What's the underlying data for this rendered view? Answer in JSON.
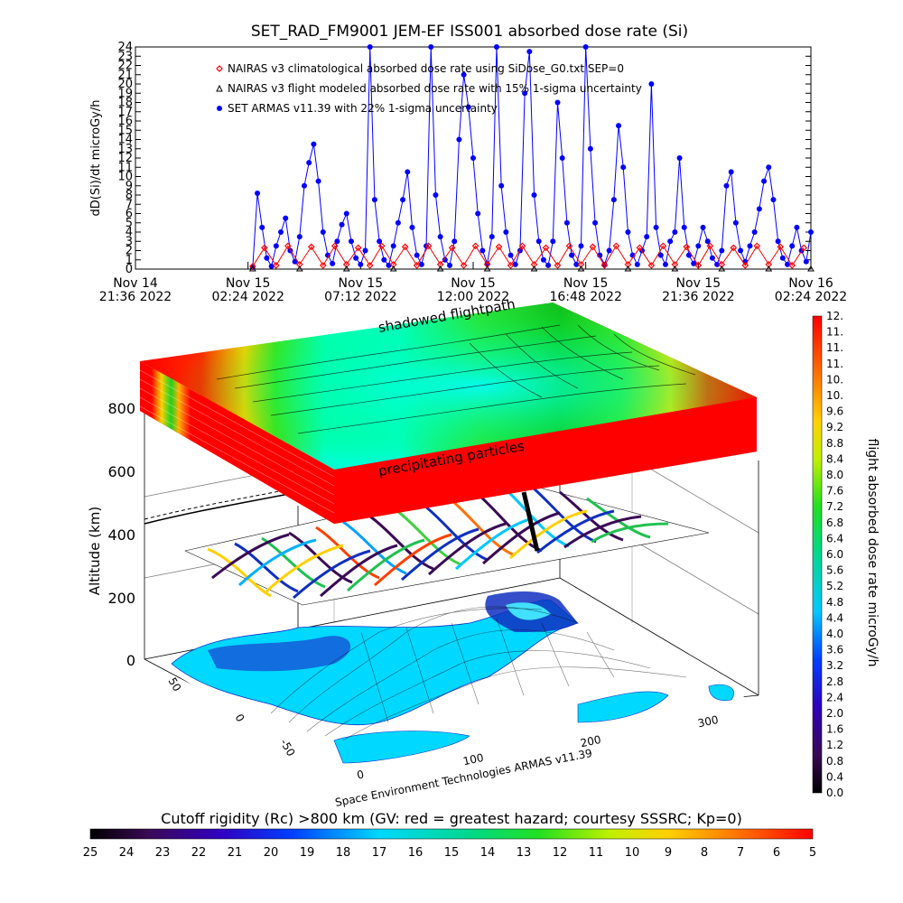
{
  "title": "SET_RAD_FM9001  JEM-EF ISS001 absorbed dose rate (Si)",
  "colors": {
    "armas": "#0000ff",
    "nairas_clim": "#ff0000",
    "nairas_flight": "#000000",
    "axis": "#000000"
  },
  "chart_data": [
    {
      "type": "line",
      "title": "SET_RAD_FM9001  JEM-EF ISS001 absorbed dose rate (Si)",
      "ylabel": "dD(Si)/dt microGy/h",
      "xlabel": "",
      "ylim": [
        0,
        24
      ],
      "yticks": [
        "0",
        "1",
        "2",
        "3",
        "4",
        "5",
        "6",
        "7",
        "8",
        "9",
        "10",
        "11",
        "12",
        "13",
        "14",
        "15",
        "16",
        "17",
        "18",
        "19",
        "20",
        "21",
        "22",
        "23",
        "24"
      ],
      "xticks": [
        {
          "line1": "Nov 14",
          "line2": "21:36 2022"
        },
        {
          "line1": "Nov 15",
          "line2": "02:24 2022"
        },
        {
          "line1": "Nov 15",
          "line2": "07:12 2022"
        },
        {
          "line1": "Nov 15",
          "line2": "12:00 2022"
        },
        {
          "line1": "Nov 15",
          "line2": "16:48 2022"
        },
        {
          "line1": "Nov 15",
          "line2": "21:36 2022"
        },
        {
          "line1": "Nov 16",
          "line2": "02:24 2022"
        }
      ],
      "x_unit": "hours after Nov 14 21:36 2022",
      "xlim": [
        0,
        28.8
      ],
      "legend": [
        {
          "marker": "diamond",
          "label": "NAIRAS v3 climatological absorbed dose rate using SiDose_G0.txt SEP=0"
        },
        {
          "marker": "triangle",
          "label": "NAIRAS v3 flight modeled absorbed dose rate with 15% 1-sigma uncertainty"
        },
        {
          "marker": "circle",
          "label": "SET ARMAS v11.39 with 22% 1-sigma uncertainty"
        }
      ],
      "legend_position": "top-left",
      "series": [
        {
          "name": "SET ARMAS v11.39 with 22% 1-sigma uncertainty",
          "points": [
            [
              5.0,
              0.2
            ],
            [
              5.2,
              8.2
            ],
            [
              5.4,
              4.5
            ],
            [
              5.6,
              1.2
            ],
            [
              5.8,
              0.3
            ],
            [
              6.0,
              2.5
            ],
            [
              6.2,
              4.0
            ],
            [
              6.4,
              5.5
            ],
            [
              6.6,
              2.0
            ],
            [
              6.8,
              0.8
            ],
            [
              7.0,
              3.5
            ],
            [
              7.2,
              9.0
            ],
            [
              7.4,
              11.5
            ],
            [
              7.6,
              13.5
            ],
            [
              7.8,
              9.5
            ],
            [
              8.0,
              4.0
            ],
            [
              8.2,
              1.5
            ],
            [
              8.4,
              0.6
            ],
            [
              8.6,
              3.0
            ],
            [
              8.8,
              4.8
            ],
            [
              9.0,
              6.0
            ],
            [
              9.2,
              3.0
            ],
            [
              9.4,
              1.2
            ],
            [
              9.6,
              0.5
            ],
            [
              9.8,
              2.0
            ],
            [
              10.0,
              24.0
            ],
            [
              10.2,
              7.5
            ],
            [
              10.4,
              3.0
            ],
            [
              10.6,
              1.0
            ],
            [
              10.8,
              0.4
            ],
            [
              11.0,
              2.5
            ],
            [
              11.2,
              5.0
            ],
            [
              11.4,
              7.5
            ],
            [
              11.6,
              10.5
            ],
            [
              11.8,
              4.5
            ],
            [
              12.0,
              1.5
            ],
            [
              12.2,
              0.5
            ],
            [
              12.4,
              2.5
            ],
            [
              12.6,
              24.0
            ],
            [
              12.8,
              8.0
            ],
            [
              13.0,
              3.5
            ],
            [
              13.2,
              1.0
            ],
            [
              13.4,
              0.4
            ],
            [
              13.6,
              3.0
            ],
            [
              13.8,
              14.0
            ],
            [
              14.0,
              21.0
            ],
            [
              14.2,
              17.5
            ],
            [
              14.4,
              12.0
            ],
            [
              14.6,
              6.0
            ],
            [
              14.8,
              2.0
            ],
            [
              15.0,
              0.6
            ],
            [
              15.2,
              3.5
            ],
            [
              15.4,
              24.0
            ],
            [
              15.6,
              9.0
            ],
            [
              15.8,
              4.0
            ],
            [
              16.0,
              1.5
            ],
            [
              16.2,
              0.5
            ],
            [
              16.4,
              2.0
            ],
            [
              16.6,
              19.0
            ],
            [
              16.8,
              23.5
            ],
            [
              17.0,
              8.0
            ],
            [
              17.2,
              3.0
            ],
            [
              17.4,
              1.0
            ],
            [
              17.6,
              0.4
            ],
            [
              17.8,
              3.0
            ],
            [
              18.0,
              18.0
            ],
            [
              18.2,
              12.0
            ],
            [
              18.4,
              5.0
            ],
            [
              18.6,
              1.5
            ],
            [
              18.8,
              0.5
            ],
            [
              19.0,
              2.5
            ],
            [
              19.2,
              24.0
            ],
            [
              19.4,
              13.0
            ],
            [
              19.6,
              5.0
            ],
            [
              19.8,
              1.5
            ],
            [
              20.0,
              0.5
            ],
            [
              20.2,
              2.0
            ],
            [
              20.4,
              7.5
            ],
            [
              20.6,
              15.5
            ],
            [
              20.8,
              11.0
            ],
            [
              21.0,
              4.0
            ],
            [
              21.2,
              1.5
            ],
            [
              21.4,
              0.5
            ],
            [
              21.6,
              2.0
            ],
            [
              21.8,
              3.5
            ],
            [
              22.0,
              20.0
            ],
            [
              22.2,
              4.5
            ],
            [
              22.4,
              1.5
            ],
            [
              22.6,
              0.5
            ],
            [
              22.8,
              3.0
            ],
            [
              23.0,
              4.0
            ],
            [
              23.2,
              12.0
            ],
            [
              23.4,
              4.5
            ],
            [
              23.6,
              1.5
            ],
            [
              23.8,
              0.6
            ],
            [
              24.0,
              2.5
            ],
            [
              24.2,
              4.5
            ],
            [
              24.4,
              3.0
            ],
            [
              24.6,
              1.2
            ],
            [
              24.8,
              0.5
            ],
            [
              25.0,
              2.0
            ],
            [
              25.2,
              9.0
            ],
            [
              25.4,
              10.5
            ],
            [
              25.6,
              5.0
            ],
            [
              25.8,
              2.0
            ],
            [
              26.0,
              0.8
            ],
            [
              26.2,
              2.5
            ],
            [
              26.4,
              4.0
            ],
            [
              26.6,
              6.5
            ],
            [
              26.8,
              9.5
            ],
            [
              27.0,
              11.0
            ],
            [
              27.2,
              7.5
            ],
            [
              27.4,
              3.0
            ],
            [
              27.6,
              1.2
            ],
            [
              27.8,
              0.5
            ],
            [
              28.0,
              2.5
            ],
            [
              28.2,
              4.5
            ],
            [
              28.4,
              2.0
            ],
            [
              28.6,
              0.8
            ],
            [
              28.8,
              4.0
            ]
          ]
        },
        {
          "name": "NAIRAS v3 climatological absorbed dose rate using SiDose_G0.txt SEP=0",
          "points": [
            [
              5.0,
              0.3
            ],
            [
              5.5,
              2.3
            ],
            [
              6.0,
              0.4
            ],
            [
              6.5,
              2.5
            ],
            [
              7.0,
              0.5
            ],
            [
              7.5,
              2.4
            ],
            [
              8.0,
              0.4
            ],
            [
              8.5,
              2.5
            ],
            [
              9.0,
              0.5
            ],
            [
              9.5,
              2.3
            ],
            [
              10.0,
              0.4
            ],
            [
              10.5,
              2.5
            ],
            [
              11.0,
              0.5
            ],
            [
              11.5,
              2.4
            ],
            [
              12.0,
              0.4
            ],
            [
              12.5,
              2.5
            ],
            [
              13.0,
              0.5
            ],
            [
              13.5,
              2.3
            ],
            [
              14.0,
              0.4
            ],
            [
              14.5,
              2.5
            ],
            [
              15.0,
              0.5
            ],
            [
              15.5,
              2.4
            ],
            [
              16.0,
              0.4
            ],
            [
              16.5,
              2.5
            ],
            [
              17.0,
              0.5
            ],
            [
              17.5,
              2.3
            ],
            [
              18.0,
              0.4
            ],
            [
              18.5,
              2.5
            ],
            [
              19.0,
              0.5
            ],
            [
              19.5,
              2.4
            ],
            [
              20.0,
              0.4
            ],
            [
              20.5,
              2.5
            ],
            [
              21.0,
              0.5
            ],
            [
              21.5,
              2.3
            ],
            [
              22.0,
              0.4
            ],
            [
              22.5,
              2.5
            ],
            [
              23.0,
              0.5
            ],
            [
              23.5,
              2.4
            ],
            [
              24.0,
              0.4
            ],
            [
              24.5,
              2.5
            ],
            [
              25.0,
              0.5
            ],
            [
              25.5,
              2.3
            ],
            [
              26.0,
              0.4
            ],
            [
              26.5,
              2.5
            ],
            [
              27.0,
              0.5
            ],
            [
              27.5,
              2.4
            ],
            [
              28.0,
              0.4
            ],
            [
              28.5,
              2.3
            ]
          ]
        },
        {
          "name": "NAIRAS v3 flight modeled absorbed dose rate with 15% 1-sigma uncertainty",
          "points": [
            [
              5.0,
              0.0
            ],
            [
              7.0,
              0.0
            ],
            [
              9.0,
              0.0
            ],
            [
              11.0,
              0.0
            ],
            [
              13.0,
              0.0
            ],
            [
              15.0,
              0.0
            ],
            [
              17.0,
              0.0
            ],
            [
              19.0,
              0.0
            ],
            [
              21.0,
              0.0
            ],
            [
              23.0,
              0.0
            ],
            [
              25.0,
              0.0
            ],
            [
              27.0,
              0.0
            ],
            [
              28.8,
              0.0
            ]
          ]
        }
      ]
    },
    {
      "type": "heatmap",
      "title": "",
      "zlabel": "Altitude (km)",
      "zticks": [
        "0",
        "200",
        "400",
        "600",
        "800"
      ],
      "xticks": [
        "0",
        "100",
        "200",
        "300"
      ],
      "yticks": [
        "-50",
        "0",
        "50"
      ],
      "annotations": [
        "shadowed flightpath",
        "precipitating particles",
        "Space Environment Technologies ARMAS v11.39"
      ]
    },
    {
      "type": "heatmap",
      "title": "flight absorbed dose rate microGy/h",
      "colorbar_orientation": "vertical",
      "colorbar_labels": [
        "0.0",
        "0.4",
        "0.8",
        "1.2",
        "1.6",
        "2.0",
        "2.4",
        "2.8",
        "3.2",
        "3.6",
        "4.0",
        "4.4",
        "4.8",
        "5.2",
        "5.6",
        "6.0",
        "6.4",
        "6.8",
        "7.2",
        "7.6",
        "8.0",
        "8.4",
        "8.8",
        "9.2",
        "9.6",
        "10.",
        "10.",
        "11.",
        "11.",
        "11.",
        "12."
      ]
    },
    {
      "type": "heatmap",
      "title": "Cutoff rigidity (Rc) >800 km (GV: red = greatest hazard; courtesy SSSRC; Kp=0)",
      "colorbar_orientation": "horizontal",
      "colorbar_labels": [
        "25",
        "24",
        "23",
        "22",
        "21",
        "20",
        "19",
        "18",
        "17",
        "16",
        "15",
        "14",
        "13",
        "12",
        "11",
        "10",
        "9",
        "8",
        "7",
        "6",
        "5"
      ]
    }
  ]
}
